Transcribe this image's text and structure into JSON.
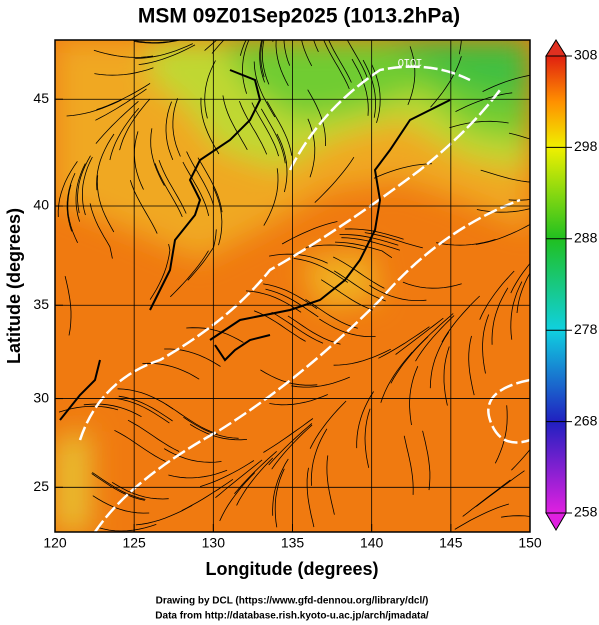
{
  "chart_data": {
    "type": "map",
    "title": "MSM 09Z01Sep2025 (1013.2hPa)",
    "xlabel": "Longitude (degrees)",
    "ylabel": "Latitude  (degrees)",
    "projection": "mercator",
    "xlim": [
      120,
      150
    ],
    "ylim": [
      22.4,
      47.6
    ],
    "xticks": [
      120,
      125,
      130,
      135,
      140,
      145,
      150
    ],
    "yticks": [
      25,
      30,
      35,
      40,
      45
    ],
    "grid": true,
    "colorbar": {
      "lim": [
        258,
        308
      ],
      "ticks": [
        258,
        268,
        278,
        288,
        298,
        308
      ]
    },
    "annotations": [
      "1010"
    ],
    "credits": [
      "Drawing by DCL (https://www.gfd-dennou.org/library/dcl/)",
      "Data from http://database.rish.kyoto-u.ac.jp/arch/jmadata/"
    ]
  }
}
